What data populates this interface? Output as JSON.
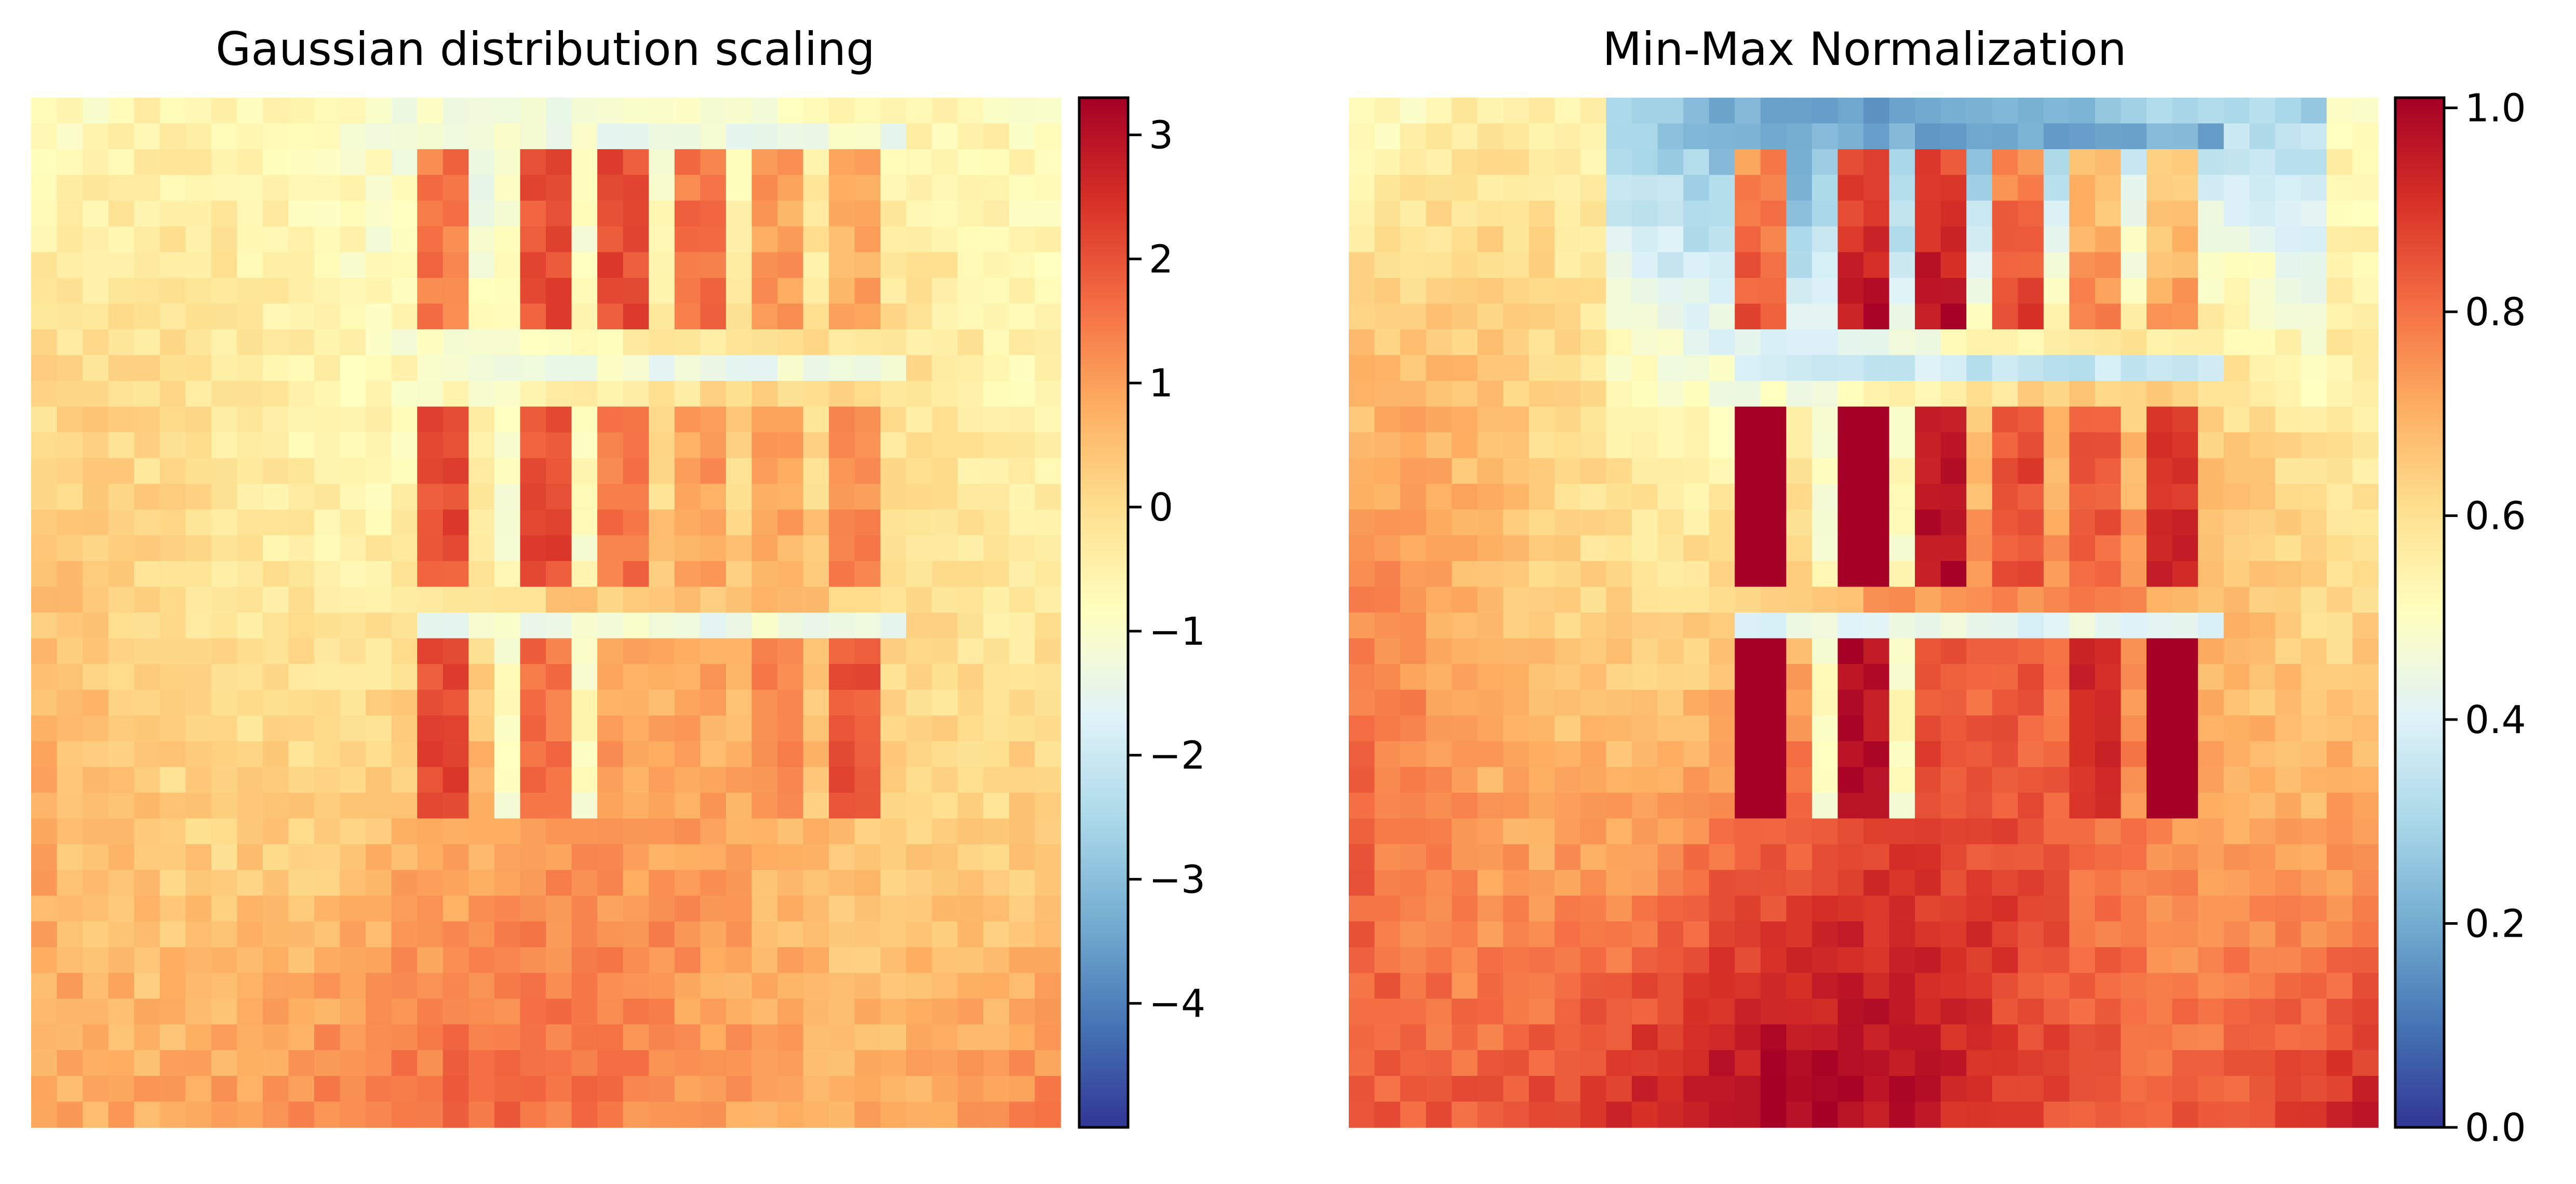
{
  "chart_data": [
    {
      "type": "heatmap",
      "title": "Gaussian distribution scaling",
      "colormap": "RdYlBu_r",
      "grid": false,
      "axes_visible": false,
      "colorbar": {
        "placement": "right",
        "range": [
          -5.0,
          3.3
        ],
        "ticks": [
          -4,
          -3,
          -2,
          -1,
          0,
          1,
          2,
          3
        ],
        "tick_labels": [
          "−4",
          "−3",
          "−2",
          "−1",
          "0",
          "1",
          "2",
          "3"
        ]
      },
      "approx_mean_value": 0.5
    },
    {
      "type": "heatmap",
      "title": "Min-Max Normalization",
      "colormap": "RdYlBu_r",
      "grid": false,
      "axes_visible": false,
      "colorbar": {
        "placement": "right",
        "range": [
          0.0,
          1.01
        ],
        "ticks": [
          0.0,
          0.2,
          0.4,
          0.6,
          0.8,
          1.0
        ],
        "tick_labels": [
          "0.0",
          "0.2",
          "0.4",
          "0.6",
          "0.8",
          "1.0"
        ]
      },
      "approx_mean_value": 0.6
    }
  ],
  "colors": {
    "colormap_stops": [
      "#313695",
      "#4575b4",
      "#74add1",
      "#abd9e9",
      "#e0f3f8",
      "#ffffbf",
      "#fee090",
      "#fdae61",
      "#f46d43",
      "#d73027",
      "#a50026"
    ]
  }
}
